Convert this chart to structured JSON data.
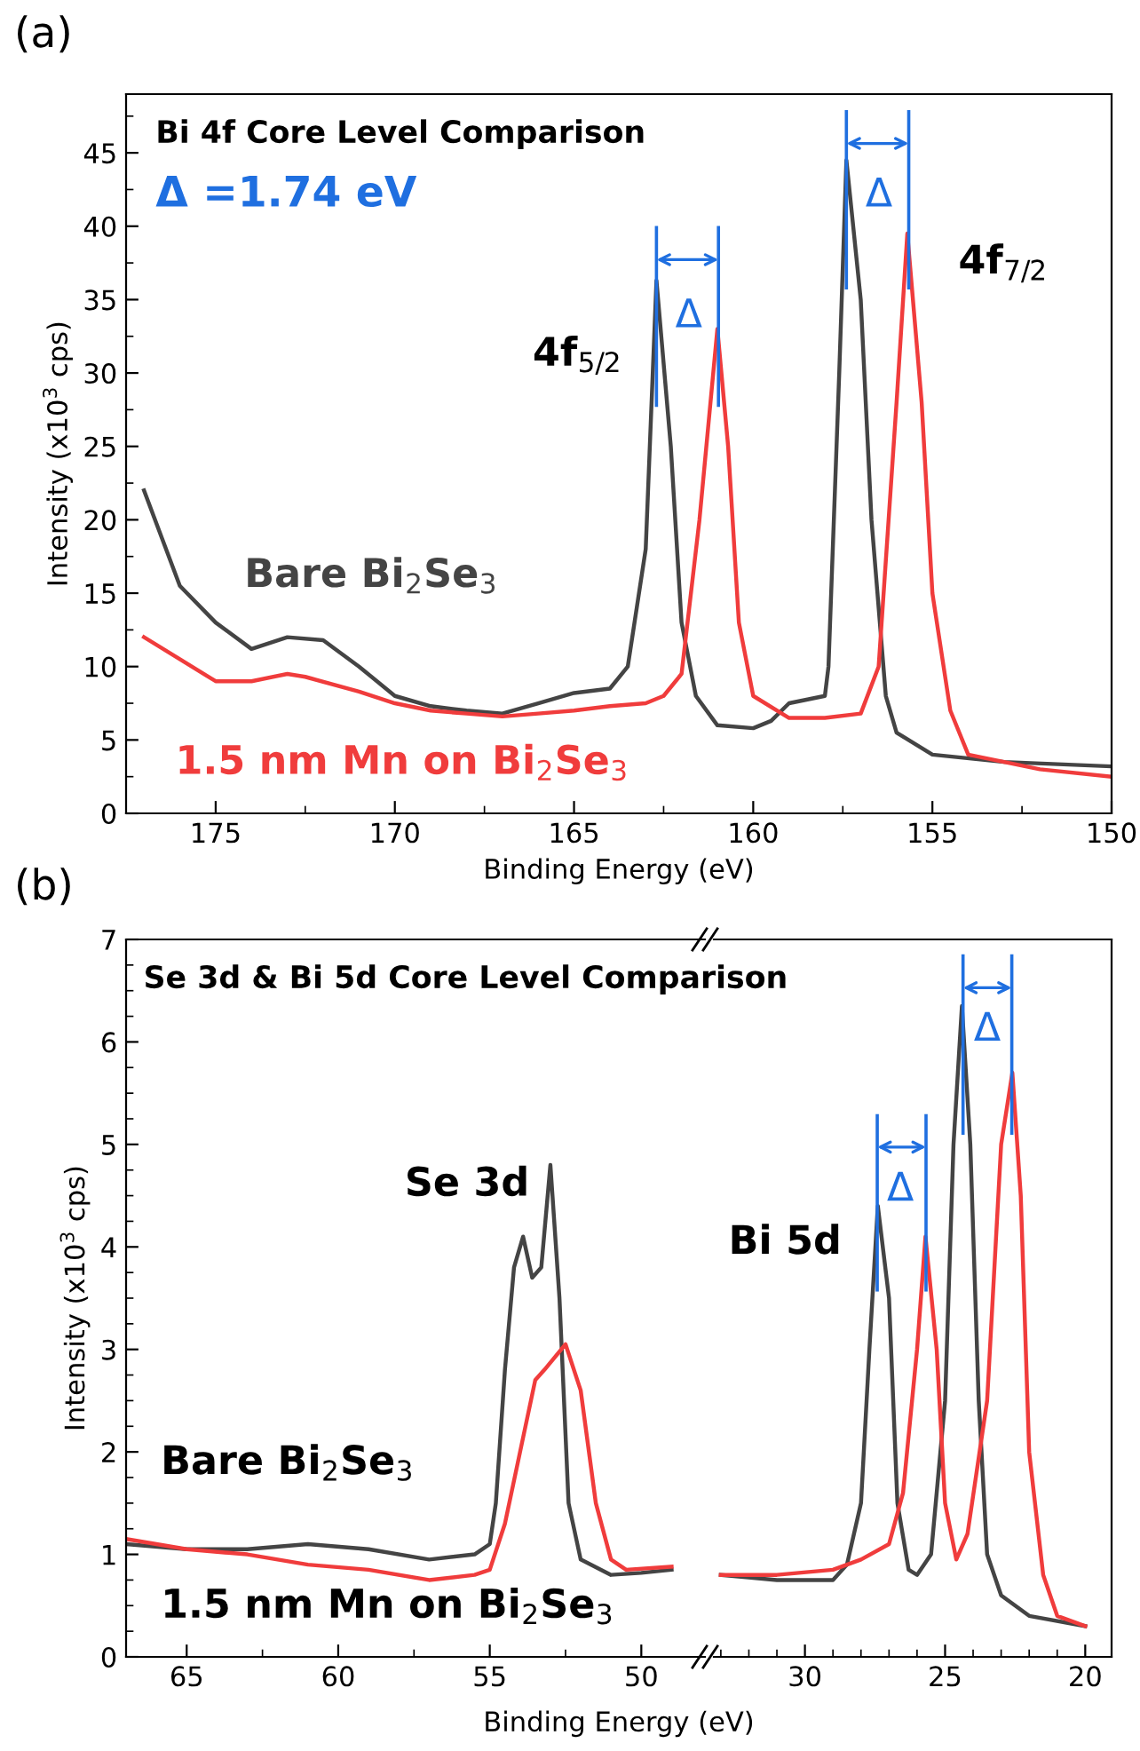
{
  "chart_data": [
    {
      "type": "line",
      "title": "Bi 4f Core Level Comparison",
      "xlabel": "Binding Energy (eV)",
      "ylabel": "Intensity (x10$^{3}$ cps)",
      "xlim": [
        177.5,
        150
      ],
      "xticks": [
        175,
        170,
        165,
        160,
        155,
        150
      ],
      "ylim": [
        0,
        49
      ],
      "yticks": [
        0,
        5,
        10,
        15,
        20,
        25,
        30,
        35,
        40,
        45
      ],
      "annotations": [
        "(a)",
        "Δ =1.74 eV",
        "4f$_{5/2}$",
        "4f$_{7/2}$",
        "Δ",
        "Δ"
      ],
      "series": [
        {
          "name": "Bare Bi$_{2}$Se$_{3}$",
          "color": "#444444",
          "x": [
            177,
            176,
            175,
            174,
            173,
            172,
            171,
            170,
            169,
            168,
            167,
            166,
            165,
            164,
            163.5,
            163,
            162.7,
            162.3,
            162,
            161.6,
            161,
            160,
            159.5,
            159,
            158,
            157.9,
            157.6,
            157.4,
            157,
            156.7,
            156.3,
            156,
            155,
            153,
            150
          ],
          "values": [
            22,
            15.5,
            13,
            11.2,
            12,
            11.8,
            10,
            8,
            7.3,
            7,
            6.8,
            7.5,
            8.2,
            8.5,
            10,
            18,
            36.3,
            25,
            13,
            8,
            6,
            5.8,
            6.3,
            7.5,
            8,
            10,
            30,
            44.5,
            35,
            20,
            8,
            5.5,
            4,
            3.5,
            3.2
          ]
        },
        {
          "name": "1.5 nm Mn on Bi$_{2}$Se$_{3}$",
          "color": "#f03c3c",
          "x": [
            177,
            176,
            175,
            174,
            173,
            172.5,
            171,
            170,
            169,
            168,
            167,
            166,
            165,
            164,
            163,
            162.5,
            162,
            161.5,
            161,
            160.7,
            160.4,
            160,
            159,
            158,
            157,
            156.5,
            156,
            155.7,
            155.3,
            155,
            154.5,
            154,
            152,
            150
          ],
          "values": [
            12,
            10.5,
            9,
            9,
            9.5,
            9.3,
            8.3,
            7.5,
            7,
            6.8,
            6.6,
            6.8,
            7,
            7.3,
            7.5,
            8,
            9.5,
            20,
            33,
            25,
            13,
            8,
            6.5,
            6.5,
            6.8,
            10,
            28,
            39.5,
            28,
            15,
            7,
            4,
            3,
            2.5
          ]
        },
        {
          "type": "line",
          "color": "#1f6fe0",
          "x": [
            162.7,
            162.7
          ],
          "values": [
            27.8,
            39.9
          ]
        },
        {
          "type": "line",
          "color": "#1f6fe0",
          "x": [
            160.97,
            160.97
          ],
          "values": [
            27.8,
            39.9
          ]
        },
        {
          "type": "line",
          "color": "#1f6fe0",
          "x": [
            157.4,
            157.4
          ],
          "values": [
            35.8,
            47.8
          ]
        },
        {
          "type": "line",
          "color": "#1f6fe0",
          "x": [
            155.66,
            155.66
          ],
          "values": [
            35.8,
            47.8
          ]
        }
      ]
    },
    {
      "type": "line",
      "title": "Se 3d & Bi 5d Core Level Comparison",
      "xlabel": "Binding Energy (eV)",
      "ylabel": "Intensity (x10$^{3}$ cps)",
      "xlim": [
        67,
        47.9
      ],
      "xticks": [
        65,
        60,
        55,
        50
      ],
      "ylim": [
        0,
        7
      ],
      "yticks": [
        0,
        1,
        2,
        3,
        4,
        5,
        6,
        7
      ],
      "annotations": [
        "(b)",
        "Se 3d"
      ],
      "series": [
        {
          "name": "Bare Bi$_{2}$Se$_{3}$",
          "color": "#444444",
          "x": [
            67,
            65,
            63,
            61,
            59,
            57,
            55.5,
            55,
            54.8,
            54.5,
            54.2,
            53.9,
            53.6,
            53.3,
            53.0,
            52.7,
            52.4,
            52,
            51,
            50,
            49
          ],
          "values": [
            1.1,
            1.05,
            1.05,
            1.1,
            1.05,
            0.95,
            1.0,
            1.1,
            1.5,
            2.8,
            3.8,
            4.1,
            3.7,
            3.8,
            4.8,
            3.5,
            1.5,
            0.95,
            0.8,
            0.82,
            0.85
          ]
        },
        {
          "name": "1.5 nm Mn on Bi$_{2}$Se$_{3}$",
          "color": "#f03c3c",
          "x": [
            67,
            65,
            63,
            61,
            59,
            57,
            55.5,
            55,
            54.5,
            54,
            53.5,
            53.2,
            52.5,
            52,
            51.5,
            51,
            50.5,
            49
          ],
          "values": [
            1.15,
            1.05,
            1.0,
            0.9,
            0.85,
            0.75,
            0.8,
            0.85,
            1.3,
            2.0,
            2.7,
            2.8,
            3.05,
            2.6,
            1.5,
            0.95,
            0.85,
            0.88
          ]
        }
      ]
    },
    {
      "type": "line",
      "xlim": [
        33.25,
        19.06
      ],
      "xticks": [
        30,
        25,
        20
      ],
      "ylim": [
        0,
        7
      ],
      "tick_labels": "x",
      "annotations": [
        "Bi 5d",
        "Δ",
        "Δ"
      ],
      "series": [
        {
          "color": "#444444",
          "x": [
            33,
            31,
            29,
            28.5,
            28,
            27.7,
            27.4,
            27,
            26.7,
            26.3,
            26,
            25.5,
            25,
            24.7,
            24.4,
            24.1,
            23.8,
            23.5,
            23,
            22,
            20
          ],
          "values": [
            0.8,
            0.75,
            0.75,
            0.9,
            1.5,
            3.0,
            4.4,
            3.5,
            1.5,
            0.85,
            0.8,
            1.0,
            2.5,
            5.0,
            6.35,
            5.0,
            2.5,
            1.0,
            0.6,
            0.4,
            0.3
          ]
        },
        {
          "color": "#f03c3c",
          "x": [
            33,
            31,
            29,
            28,
            27,
            26.5,
            26,
            25.7,
            25.3,
            25,
            24.6,
            24.2,
            23.5,
            23,
            22.6,
            22.3,
            22,
            21.5,
            21,
            20
          ],
          "values": [
            0.8,
            0.8,
            0.85,
            0.95,
            1.1,
            1.6,
            3.0,
            4.1,
            3.0,
            1.5,
            0.95,
            1.2,
            2.5,
            5.0,
            5.7,
            4.5,
            2.0,
            0.8,
            0.4,
            0.3
          ]
        },
        {
          "type": "line",
          "color": "#1f6fe0",
          "x": [
            27.42,
            27.42
          ],
          "values": [
            3.58,
            5.28
          ]
        },
        {
          "type": "line",
          "color": "#1f6fe0",
          "x": [
            25.68,
            25.68
          ],
          "values": [
            3.58,
            5.28
          ]
        },
        {
          "type": "line",
          "color": "#1f6fe0",
          "x": [
            24.36,
            24.36
          ],
          "values": [
            5.11,
            6.84
          ]
        },
        {
          "type": "line",
          "color": "#1f6fe0",
          "x": [
            22.62,
            22.62
          ],
          "values": [
            5.11,
            6.84
          ]
        }
      ]
    }
  ]
}
